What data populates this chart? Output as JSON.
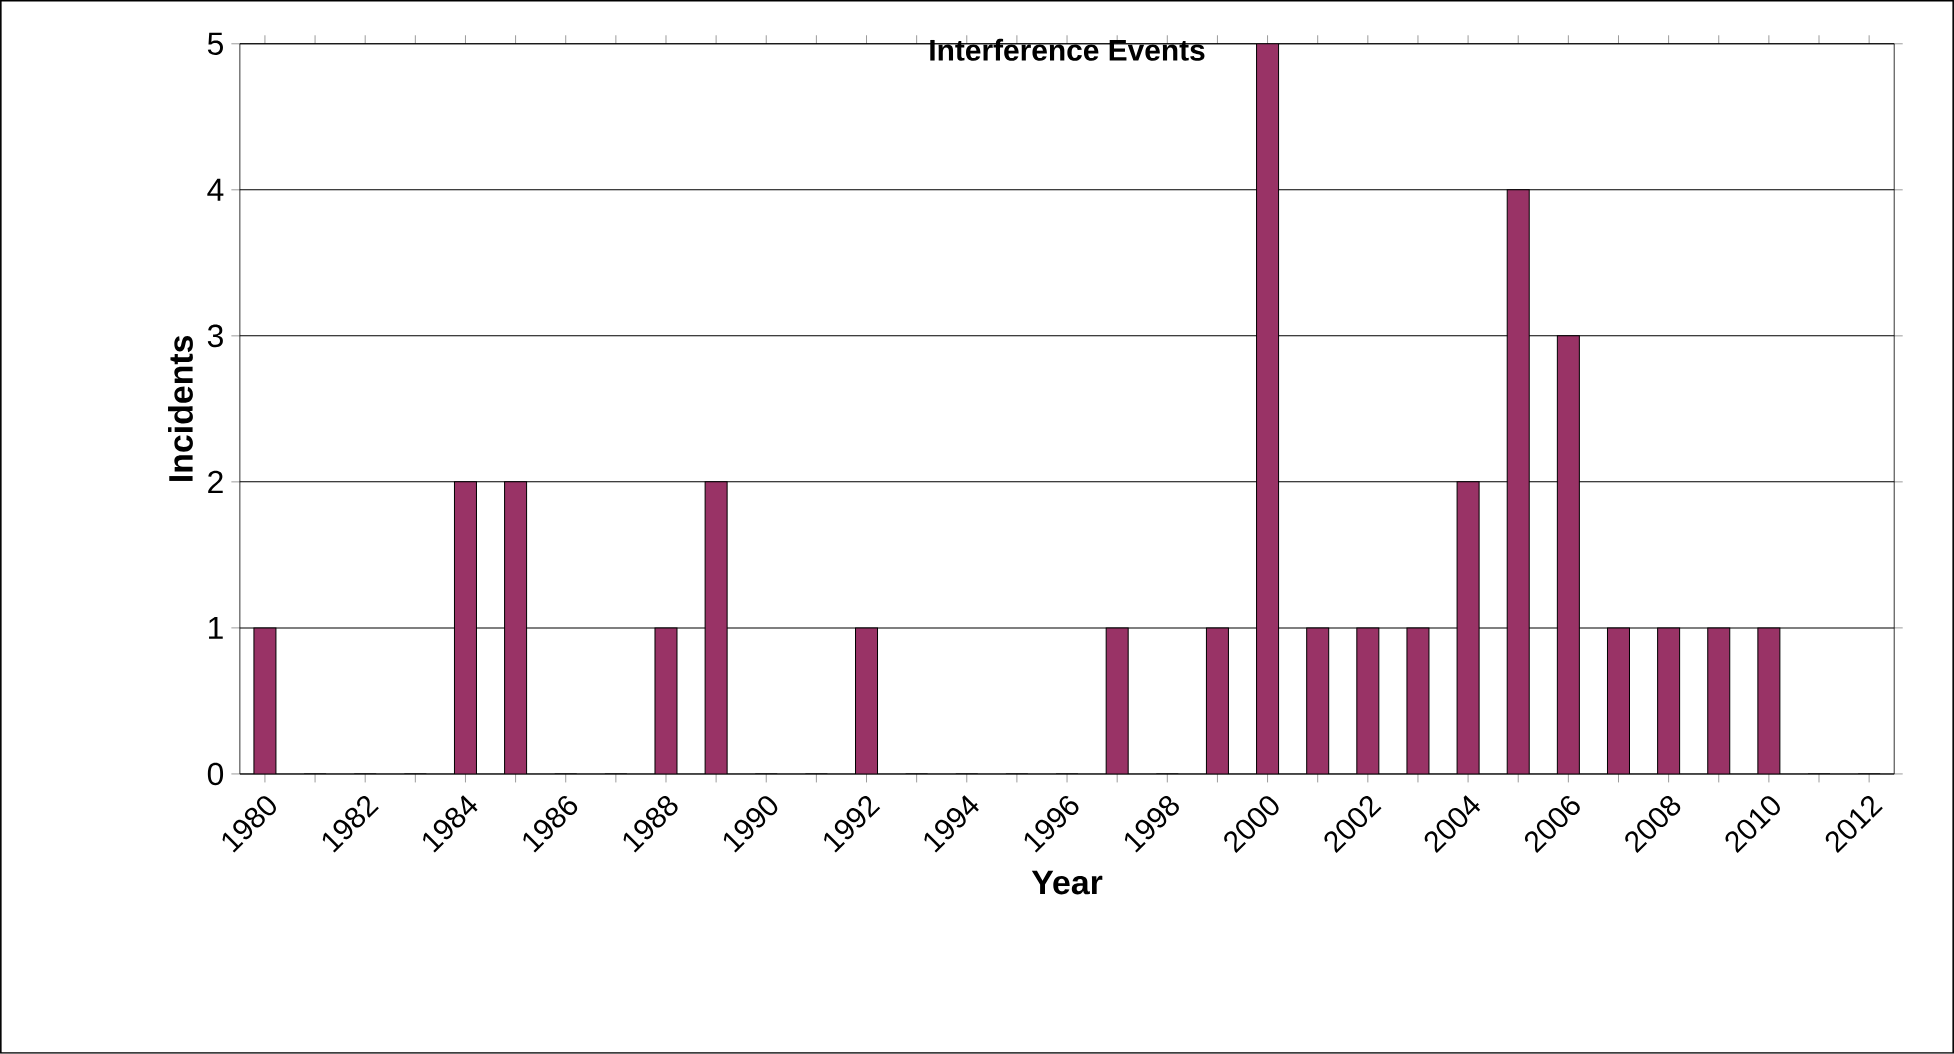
{
  "chart_data": {
    "type": "bar",
    "title": "Interference Events",
    "xlabel": "Year",
    "ylabel": "Incidents",
    "categories": [
      "1980",
      null,
      "1982",
      null,
      "1984",
      null,
      "1986",
      null,
      "1988",
      null,
      "1990",
      null,
      "1992",
      null,
      "1994",
      null,
      "1996",
      null,
      "1998",
      null,
      "2000",
      null,
      "2002",
      null,
      "2004",
      null,
      "2006",
      null,
      "2008",
      null,
      "2010",
      null,
      "2012"
    ],
    "values": [
      1,
      0,
      0,
      0,
      2,
      2,
      0,
      0,
      1,
      2,
      0,
      0,
      1,
      0,
      0,
      0,
      0,
      1,
      0,
      1,
      5,
      1,
      1,
      1,
      2,
      4,
      3,
      1,
      1,
      1,
      1,
      0,
      0
    ],
    "color": "#993366",
    "ylim": [
      0,
      5
    ],
    "yticks": [
      0,
      1,
      2,
      3,
      4,
      5
    ],
    "grid": "y"
  }
}
